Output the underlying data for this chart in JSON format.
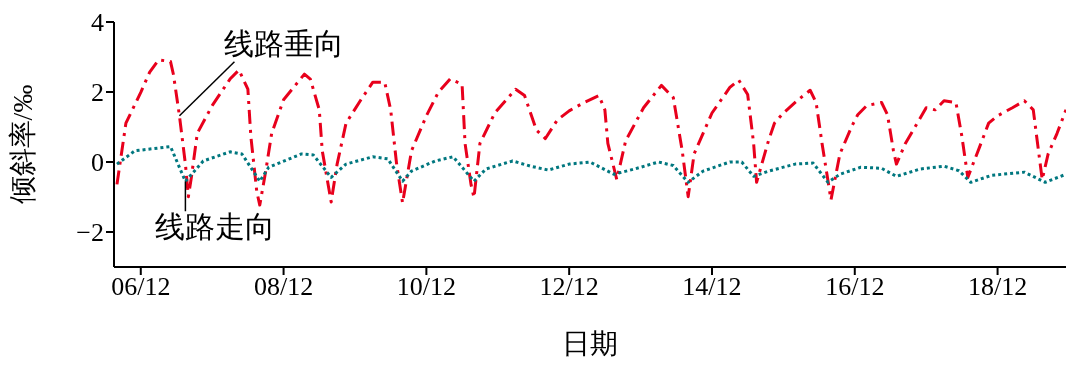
{
  "chart_data": {
    "type": "line",
    "xlabel": "日期",
    "ylabel": "倾斜率/‰",
    "xlim": [
      "--12-05T15:00",
      "--12-18T23:00"
    ],
    "xticks": [
      {
        "value": "--12-06",
        "label": "06/12"
      },
      {
        "value": "--12-08",
        "label": "08/12"
      },
      {
        "value": "--12-10",
        "label": "10/12"
      },
      {
        "value": "--12-12",
        "label": "12/12"
      },
      {
        "value": "--12-14",
        "label": "14/12"
      },
      {
        "value": "--12-16",
        "label": "16/12"
      },
      {
        "value": "--12-18",
        "label": "18/12"
      }
    ],
    "ylim": [
      -3,
      4
    ],
    "yticks": [
      -2,
      0,
      2,
      4
    ],
    "series": [
      {
        "name": "线路垂向",
        "color": "#e8001c",
        "line_style": "dashed",
        "x": [
          "--12-05T16:00",
          "--12-05T19:00",
          "--12-06T00:00",
          "--12-06T03:00",
          "--12-06T06:00",
          "--12-06T10:00",
          "--12-06T11:00",
          "--12-06T13:00",
          "--12-06T15:00",
          "--12-06T16:00",
          "--12-06T17:00",
          "--12-06T19:00",
          "--12-07T00:00",
          "--12-07T06:00",
          "--12-07T09:00",
          "--12-07T12:00",
          "--12-07T13:00",
          "--12-07T15:00",
          "--12-07T16:00",
          "--12-07T18:00",
          "--12-07T20:00",
          "--12-08T00:00",
          "--12-08T07:00",
          "--12-08T09:00",
          "--12-08T12:00",
          "--12-08T13:00",
          "--12-08T16:00",
          "--12-08T18:00",
          "--12-08T21:00",
          "--12-09T02:00",
          "--12-09T06:00",
          "--12-09T10:00",
          "--12-09T12:00",
          "--12-09T14:00",
          "--12-09T16:00",
          "--12-09T19:00",
          "--12-10T00:00",
          "--12-10T04:00",
          "--12-10T08:00",
          "--12-10T12:00",
          "--12-10T13:00",
          "--12-10T15:00",
          "--12-10T16:00",
          "--12-10T18:00",
          "--12-10T23:00",
          "--12-11T06:00",
          "--12-11T09:00",
          "--12-11T13:00",
          "--12-11T16:00",
          "--12-11T20:00",
          "--12-12T00:00",
          "--12-12T05:00",
          "--12-12T10:00",
          "--12-12T12:00",
          "--12-12T13:00",
          "--12-12T16:00",
          "--12-12T19:00",
          "--12-13T01:00",
          "--12-13T07:00",
          "--12-13T11:00",
          "--12-13T14:00",
          "--12-13T16:00",
          "--12-13T18:00",
          "--12-14T00:00",
          "--12-14T06:00",
          "--12-14T09:00",
          "--12-14T12:00",
          "--12-14T14:00",
          "--12-14T15:00",
          "--12-14T19:00",
          "--12-14T21:00",
          "--12-15T00:00",
          "--12-15T05:00",
          "--12-15T09:00",
          "--12-15T11:00",
          "--12-15T13:00",
          "--12-15T16:00",
          "--12-15T19:00",
          "--12-15T23:00",
          "--12-16T01:00",
          "--12-16T04:00",
          "--12-16T09:00",
          "--12-16T11:00",
          "--12-16T13:00",
          "--12-16T14:00",
          "--12-16T17:00",
          "--12-16T21:00",
          "--12-17T00:00",
          "--12-17T03:00",
          "--12-17T06:00",
          "--12-17T10:00",
          "--12-17T12:00",
          "--12-17T14:00",
          "--12-17T18:00",
          "--12-17T21:00",
          "--12-18T00:00",
          "--12-18T05:00",
          "--12-18T09:00",
          "--12-18T12:00",
          "--12-18T13:00",
          "--12-18T15:00",
          "--12-18T17:00",
          "--12-18T20:00",
          "--12-18T23:00"
        ],
        "values": [
          -0.64,
          1.11,
          1.99,
          2.57,
          2.92,
          2.87,
          2.49,
          1.32,
          -0.06,
          -0.99,
          -0.44,
          0.82,
          1.61,
          2.37,
          2.63,
          2.08,
          0.73,
          -0.85,
          -1.23,
          -0.26,
          0.82,
          1.78,
          2.51,
          2.37,
          1.49,
          0.32,
          -1.14,
          -0.06,
          1.11,
          1.78,
          2.28,
          2.28,
          1.49,
          -0.06,
          -1.17,
          0.32,
          1.32,
          1.99,
          2.37,
          2.22,
          0.53,
          -0.64,
          -1.02,
          0.53,
          1.4,
          2.08,
          1.9,
          0.91,
          0.67,
          1.2,
          1.46,
          1.7,
          1.9,
          1.49,
          0.53,
          -0.5,
          0.61,
          1.55,
          2.19,
          1.84,
          0.32,
          -0.99,
          0.23,
          1.4,
          2.13,
          2.34,
          1.93,
          0.53,
          -0.58,
          0.61,
          1.11,
          1.4,
          1.78,
          2.05,
          1.7,
          0.53,
          -1.08,
          0.23,
          1.02,
          1.35,
          1.61,
          1.7,
          1.35,
          0.32,
          -0.06,
          0.53,
          1.11,
          1.55,
          1.49,
          1.75,
          1.7,
          0.73,
          -0.44,
          0.44,
          1.11,
          1.32,
          1.55,
          1.75,
          1.49,
          0.82,
          -0.5,
          0.23,
          0.82,
          1.49
        ]
      },
      {
        "name": "线路走向",
        "color": "#00777f",
        "line_style": "dotted",
        "x": [
          "--12-05T16:00",
          "--12-05T22:00",
          "--12-06T10:00",
          "--12-06T15:00",
          "--12-06T21:00",
          "--12-07T06:00",
          "--12-07T10:00",
          "--12-07T16:00",
          "--12-07T19:00",
          "--12-08T06:00",
          "--12-08T10:00",
          "--12-08T16:00",
          "--12-08T21:00",
          "--12-09T06:00",
          "--12-09T11:00",
          "--12-09T16:00",
          "--12-09T19:00",
          "--12-10T03:00",
          "--12-10T09:00",
          "--12-10T12:00",
          "--12-10T16:00",
          "--12-10T20:00",
          "--12-11T05:00",
          "--12-11T11:00",
          "--12-11T17:00",
          "--12-12T00:00",
          "--12-12T07:00",
          "--12-12T15:00",
          "--12-12T22:00",
          "--12-13T06:00",
          "--12-13T11:00",
          "--12-13T16:00",
          "--12-13T21:00",
          "--12-14T06:00",
          "--12-14T10:00",
          "--12-14T14:00",
          "--12-14T19:00",
          "--12-15T04:00",
          "--12-15T10:00",
          "--12-15T15:00",
          "--12-15T19:00",
          "--12-16T02:00",
          "--12-16T09:00",
          "--12-16T14:00",
          "--12-16T22:00",
          "--12-17T06:00",
          "--12-17T11:00",
          "--12-17T15:00",
          "--12-17T22:00",
          "--12-18T09:00",
          "--12-18T16:00",
          "--12-18T23:00"
        ],
        "values": [
          -0.06,
          0.32,
          0.44,
          -0.55,
          0.03,
          0.29,
          0.23,
          -0.55,
          -0.15,
          0.23,
          0.2,
          -0.44,
          -0.06,
          0.15,
          0.09,
          -0.55,
          -0.26,
          0.03,
          0.15,
          -0.15,
          -0.55,
          -0.2,
          0.03,
          -0.12,
          -0.23,
          -0.06,
          0,
          -0.35,
          -0.2,
          0,
          -0.1,
          -0.58,
          -0.26,
          0,
          0,
          -0.41,
          -0.26,
          -0.06,
          -0.03,
          -0.58,
          -0.35,
          -0.15,
          -0.18,
          -0.41,
          -0.2,
          -0.12,
          -0.25,
          -0.58,
          -0.38,
          -0.29,
          -0.58,
          -0.35
        ]
      }
    ]
  }
}
